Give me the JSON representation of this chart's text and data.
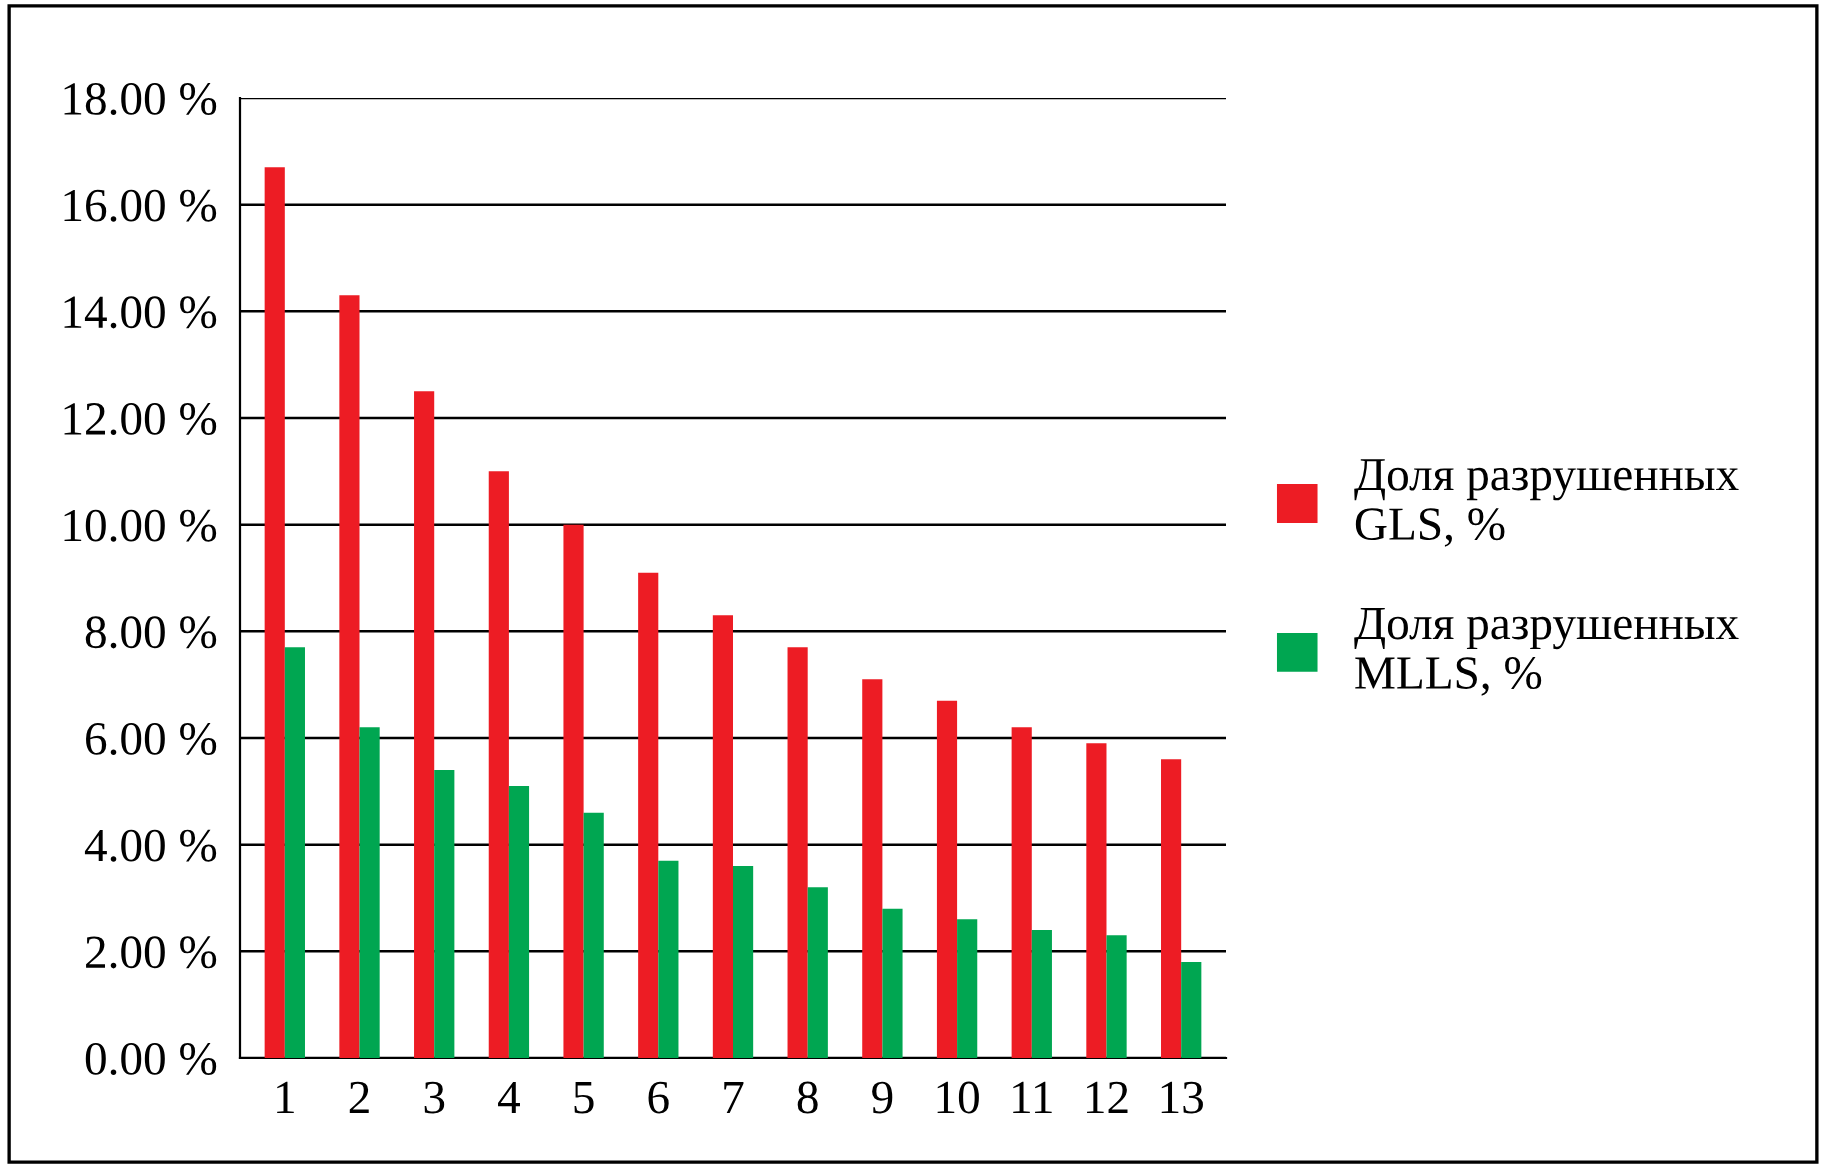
{
  "chart_data": {
    "type": "bar",
    "categories": [
      "1",
      "2",
      "3",
      "4",
      "5",
      "6",
      "7",
      "8",
      "9",
      "10",
      "11",
      "12",
      "13"
    ],
    "series": [
      {
        "name": "Доля разрушенных GLS, %",
        "color": "#ed1c24",
        "values": [
          16.7,
          14.3,
          12.5,
          11.0,
          10.0,
          9.1,
          8.3,
          7.7,
          7.1,
          6.7,
          6.2,
          5.9,
          5.6
        ]
      },
      {
        "name": "Доля разрушенных MLLS, %",
        "color": "#00a651",
        "values": [
          7.7,
          6.2,
          5.4,
          5.1,
          4.6,
          3.7,
          3.6,
          3.2,
          2.8,
          2.6,
          2.4,
          2.3,
          1.8
        ]
      }
    ],
    "ylim": [
      0,
      18
    ],
    "yticks": [
      {
        "value": 0,
        "label": "0.00 %"
      },
      {
        "value": 2,
        "label": "2.00 %"
      },
      {
        "value": 4,
        "label": "4.00 %"
      },
      {
        "value": 6,
        "label": "6.00 %"
      },
      {
        "value": 8,
        "label": "8.00 %"
      },
      {
        "value": 10,
        "label": "10.00 %"
      },
      {
        "value": 12,
        "label": "12.00 %"
      },
      {
        "value": 14,
        "label": "14.00 %"
      },
      {
        "value": 16,
        "label": "16.00 %"
      },
      {
        "value": 18,
        "label": "18.00 %"
      }
    ],
    "grid": "y",
    "legend": "right"
  }
}
